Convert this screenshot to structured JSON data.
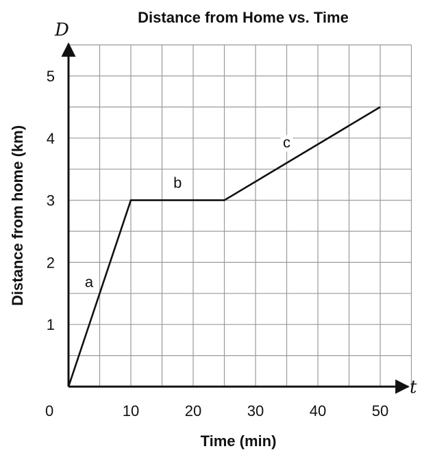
{
  "chart_data": {
    "type": "line",
    "title": "Distance from Home vs. Time",
    "xlabel": "Time (min)",
    "ylabel": "Distance from home (km)",
    "x_axis_variable": "t",
    "y_axis_variable": "D",
    "origin_label": "0",
    "xlim": [
      0,
      55
    ],
    "ylim": [
      0,
      5.5
    ],
    "x_ticks": [
      10,
      20,
      30,
      40,
      50
    ],
    "y_ticks": [
      1,
      2,
      3,
      4,
      5
    ],
    "grid": true,
    "grid_step_x": 5,
    "grid_step_y": 0.5,
    "series": [
      {
        "x": [
          0,
          10,
          25,
          50
        ],
        "y": [
          0,
          3,
          3,
          4.5
        ]
      }
    ],
    "segment_labels": [
      {
        "text": "a",
        "x": 3.3,
        "y": 1.6
      },
      {
        "text": "b",
        "x": 17.5,
        "y": 3.2
      },
      {
        "text": "c",
        "x": 35,
        "y": 3.85
      }
    ],
    "colors": {
      "line": "#111111",
      "grid": "#9a9a9a",
      "axis": "#111111"
    }
  }
}
